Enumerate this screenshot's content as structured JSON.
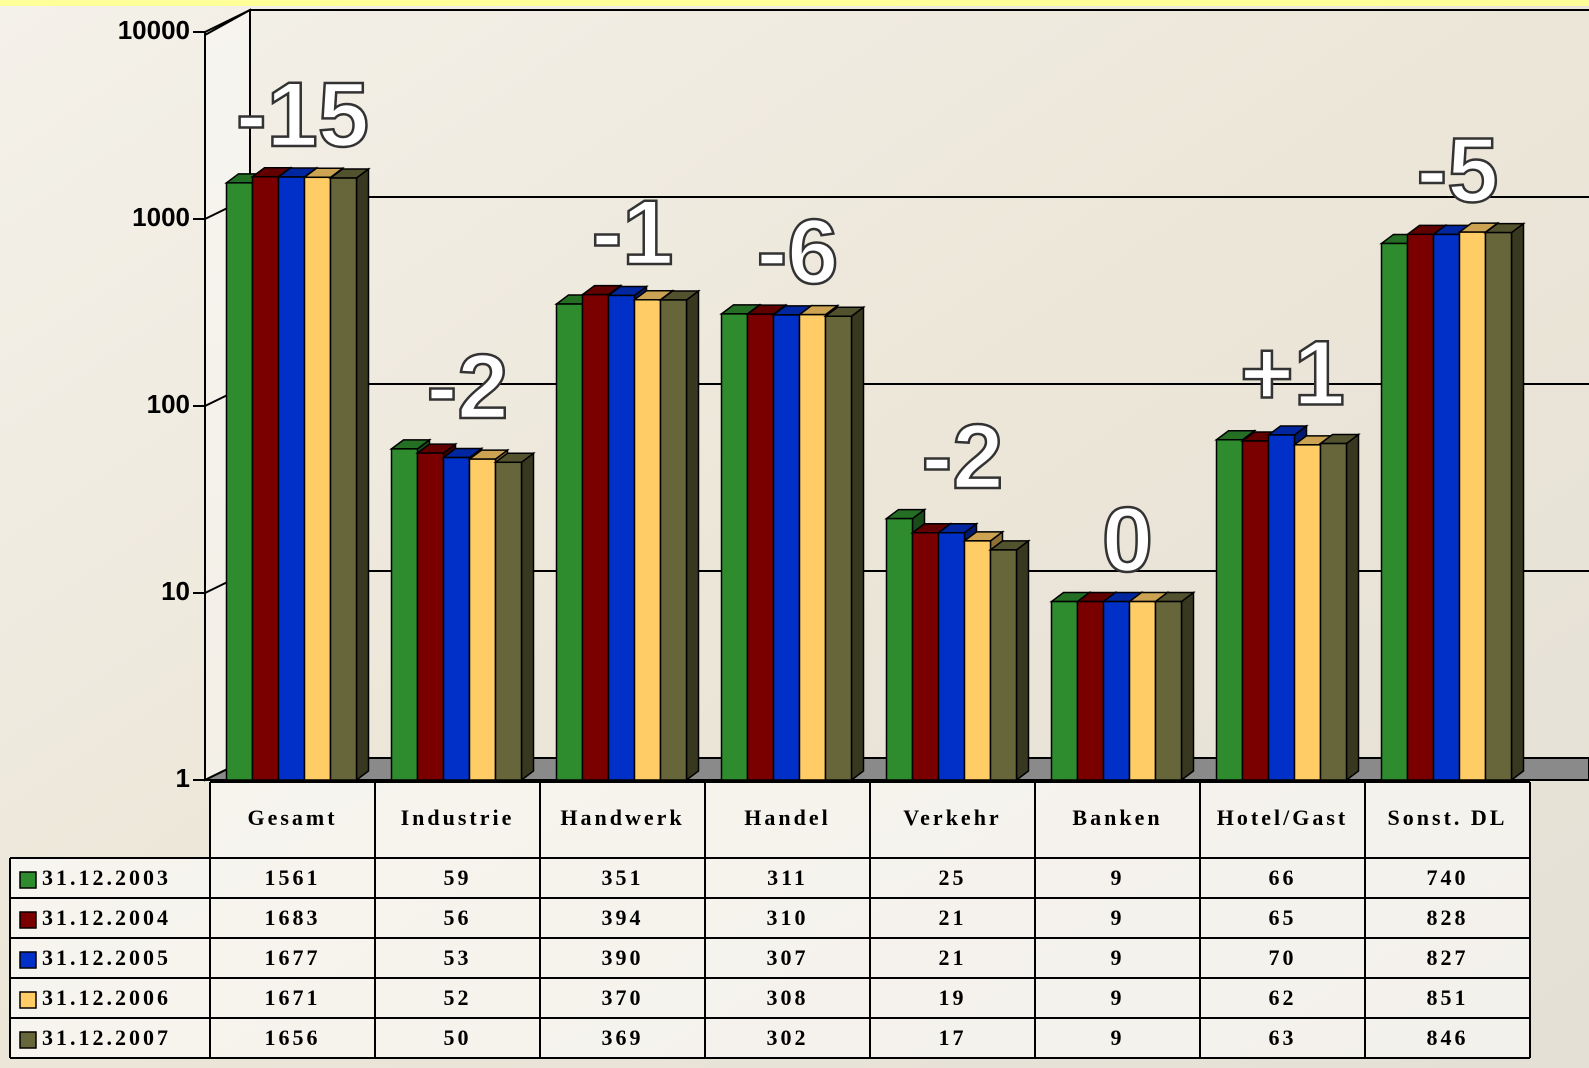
{
  "chart_data": {
    "type": "bar3d",
    "categories": [
      "Gesamt",
      "Industrie",
      "Handwerk",
      "Handel",
      "Verkehr",
      "Banken",
      "Hotel/Gast",
      "Sonst. DL"
    ],
    "series": [
      {
        "name": "31.12.2003",
        "color": "#2e8b2e",
        "values": [
          1561,
          59,
          351,
          311,
          25,
          9,
          66,
          740
        ]
      },
      {
        "name": "31.12.2004",
        "color": "#7a0000",
        "values": [
          1683,
          56,
          394,
          310,
          21,
          9,
          65,
          828
        ]
      },
      {
        "name": "31.12.2005",
        "color": "#0030c8",
        "values": [
          1677,
          53,
          390,
          307,
          21,
          9,
          70,
          827
        ]
      },
      {
        "name": "31.12.2006",
        "color": "#ffcc66",
        "values": [
          1671,
          52,
          370,
          308,
          19,
          9,
          62,
          851
        ]
      },
      {
        "name": "31.12.2007",
        "color": "#66663a",
        "values": [
          1656,
          50,
          369,
          302,
          17,
          9,
          63,
          846
        ]
      }
    ],
    "annotations": [
      "-15",
      "-2",
      "-1",
      "-6",
      "-2",
      "0",
      "+1",
      "-5"
    ],
    "ylim": [
      1,
      10000
    ],
    "yticks": [
      1,
      10,
      100,
      1000,
      10000
    ],
    "log_scale": true,
    "grid": true
  }
}
